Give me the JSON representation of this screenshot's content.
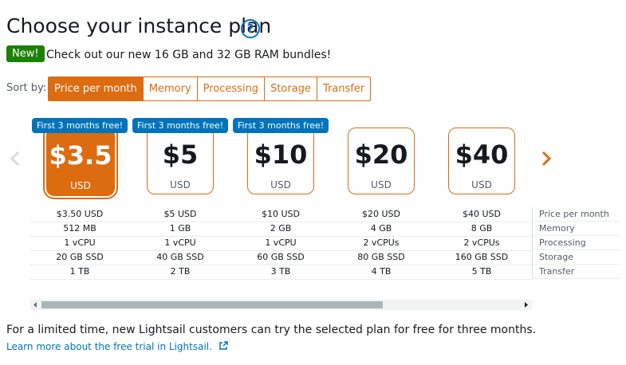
{
  "header": {
    "title": "Choose your instance plan",
    "help_icon": "?"
  },
  "announcement": {
    "badge": "New!",
    "text": "Check out our new 16 GB and 32 GB RAM bundles!"
  },
  "sort": {
    "label": "Sort by:",
    "options": [
      "Price per month",
      "Memory",
      "Processing",
      "Storage",
      "Transfer"
    ],
    "selected": 0
  },
  "plans": [
    {
      "badge": "First 3 months free!",
      "price": "$3.5",
      "currency": "USD",
      "specs": [
        "$3.50 USD",
        "512 MB",
        "1 vCPU",
        "20 GB SSD",
        "1 TB"
      ]
    },
    {
      "badge": "First 3 months free!",
      "price": "$5",
      "currency": "USD",
      "specs": [
        "$5 USD",
        "1 GB",
        "1 vCPU",
        "40 GB SSD",
        "2 TB"
      ]
    },
    {
      "badge": "First 3 months free!",
      "price": "$10",
      "currency": "USD",
      "specs": [
        "$10 USD",
        "2 GB",
        "1 vCPU",
        "60 GB SSD",
        "3 TB"
      ]
    },
    {
      "price": "$20",
      "currency": "USD",
      "specs": [
        "$20 USD",
        "4 GB",
        "2 vCPUs",
        "80 GB SSD",
        "4 TB"
      ]
    },
    {
      "price": "$40",
      "currency": "USD",
      "specs": [
        "$40 USD",
        "8 GB",
        "2 vCPUs",
        "160 GB SSD",
        "5 TB"
      ]
    }
  ],
  "selected_plan": 0,
  "spec_labels": [
    "Price per month",
    "Memory",
    "Processing",
    "Storage",
    "Transfer"
  ],
  "footer": {
    "text": "For a limited time, new Lightsail customers can try the selected plan for free for three months.",
    "link": "Learn more about the free trial in Lightsail."
  }
}
